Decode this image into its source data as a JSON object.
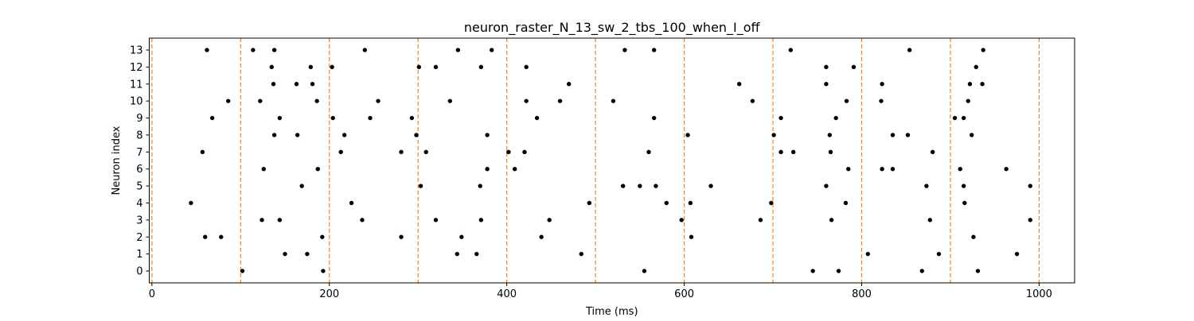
{
  "chart_data": {
    "type": "scatter",
    "title": "neuron_raster_N_13_sw_2_tbs_100_when_I_off",
    "xlabel": "Time (ms)",
    "ylabel": "Neuron index",
    "xlim": [
      -3,
      1040
    ],
    "ylim": [
      -0.7,
      13.7
    ],
    "xticks": [
      0,
      200,
      400,
      600,
      800,
      1000
    ],
    "yticks": [
      0,
      1,
      2,
      3,
      4,
      5,
      6,
      7,
      8,
      9,
      10,
      11,
      12,
      13
    ],
    "grid": false,
    "marker_color": "#000000",
    "vline_color": "#ff7f0e",
    "vlines": [
      0,
      100,
      200,
      300,
      400,
      500,
      600,
      700,
      800,
      900,
      1000
    ],
    "spikes": [
      {
        "neuron": 13,
        "times": [
          62,
          114,
          138,
          240,
          345,
          383,
          533,
          566,
          720,
          854,
          937
        ]
      },
      {
        "neuron": 12,
        "times": [
          135,
          179,
          203,
          301,
          320,
          371,
          422,
          760,
          791,
          929
        ]
      },
      {
        "neuron": 11,
        "times": [
          137,
          163,
          181,
          470,
          662,
          760,
          823,
          922,
          936
        ]
      },
      {
        "neuron": 10,
        "times": [
          86,
          122,
          186,
          255,
          336,
          422,
          460,
          520,
          677,
          783,
          822,
          920
        ]
      },
      {
        "neuron": 9,
        "times": [
          68,
          144,
          204,
          246,
          293,
          434,
          566,
          709,
          771,
          905,
          915
        ]
      },
      {
        "neuron": 8,
        "times": [
          138,
          164,
          217,
          298,
          378,
          604,
          701,
          764,
          835,
          852,
          924
        ]
      },
      {
        "neuron": 7,
        "times": [
          57,
          213,
          281,
          309,
          402,
          420,
          560,
          709,
          723,
          765,
          880
        ]
      },
      {
        "neuron": 6,
        "times": [
          126,
          187,
          378,
          409,
          785,
          823,
          835,
          911,
          963
        ]
      },
      {
        "neuron": 5,
        "times": [
          169,
          303,
          370,
          531,
          550,
          568,
          630,
          760,
          873,
          915,
          990
        ]
      },
      {
        "neuron": 4,
        "times": [
          44,
          225,
          493,
          580,
          607,
          698,
          782,
          916
        ]
      },
      {
        "neuron": 3,
        "times": [
          124,
          144,
          237,
          320,
          371,
          448,
          597,
          686,
          766,
          877,
          990
        ]
      },
      {
        "neuron": 2,
        "times": [
          60,
          78,
          192,
          281,
          349,
          439,
          608,
          926
        ]
      },
      {
        "neuron": 1,
        "times": [
          150,
          175,
          344,
          366,
          484,
          807,
          887,
          975
        ]
      },
      {
        "neuron": 0,
        "times": [
          102,
          193,
          555,
          745,
          774,
          868,
          931
        ]
      }
    ]
  }
}
